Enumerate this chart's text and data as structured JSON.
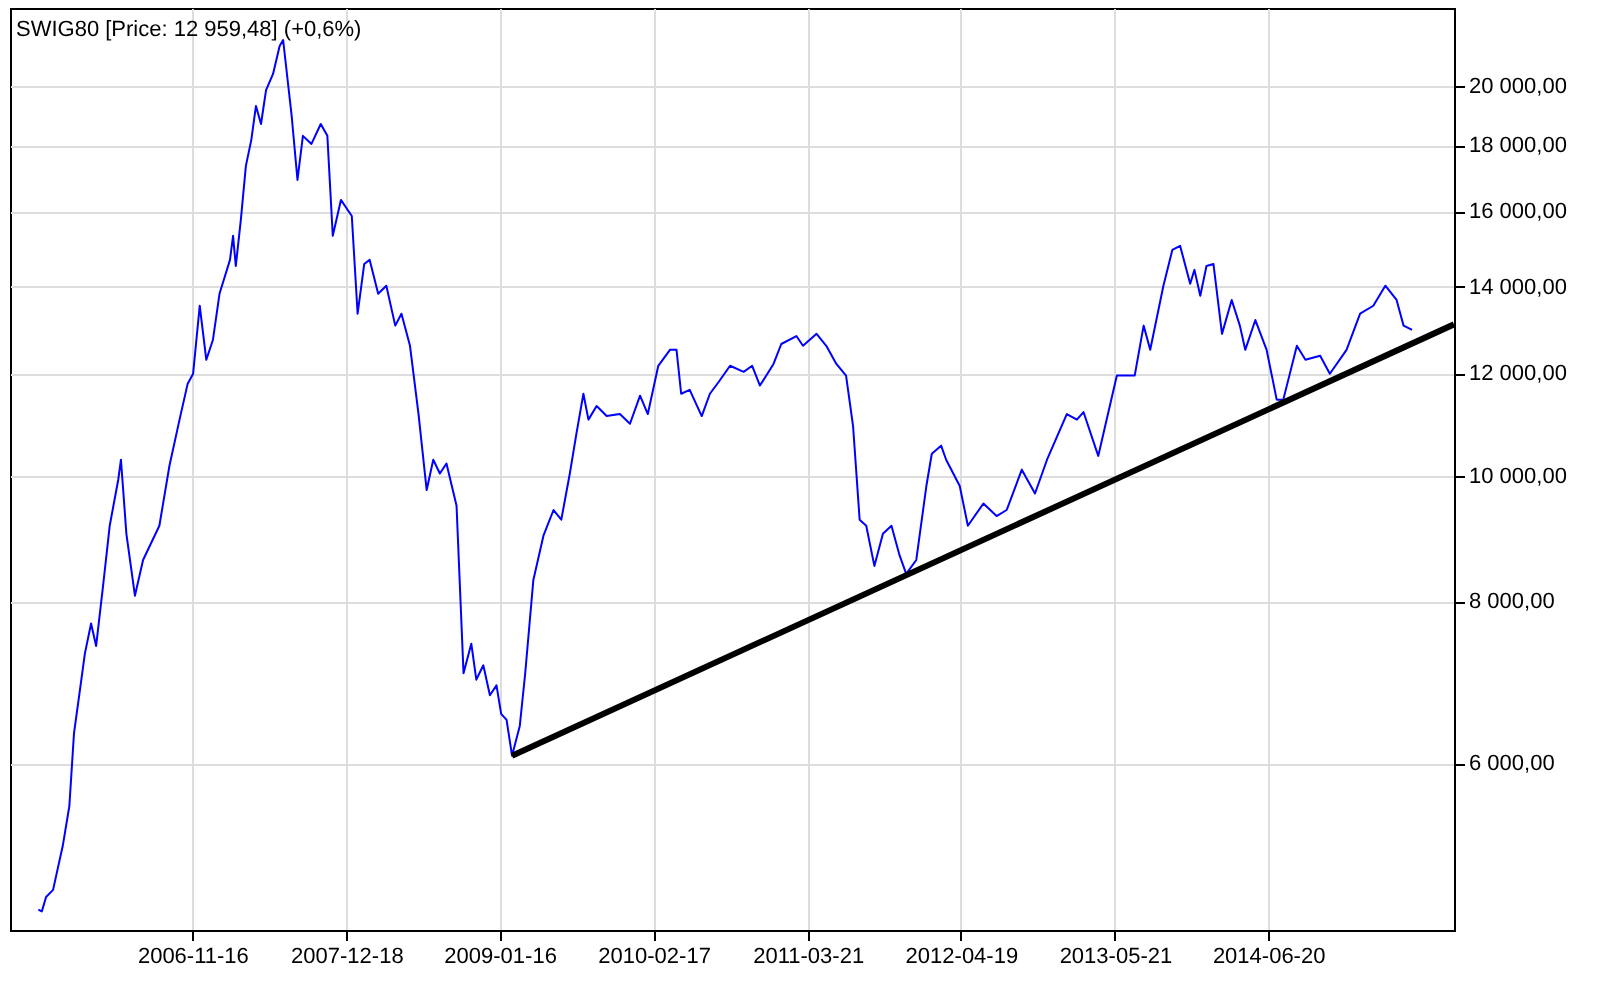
{
  "chart_data": {
    "type": "line",
    "title": "SWIG80 [Price: 12 959,48] (+0,6%)",
    "log": "y",
    "grid": true,
    "xlim": [
      "2005-08-03",
      "2015-10-12"
    ],
    "xticks": [
      "2006-11-16",
      "2007-12-18",
      "2009-01-16",
      "2010-02-17",
      "2011-03-21",
      "2012-04-19",
      "2013-05-21",
      "2014-06-20"
    ],
    "ylim": [
      4460,
      22970
    ],
    "yticks": [
      {
        "value": 6000,
        "label": "6 000,00"
      },
      {
        "value": 8000,
        "label": "8 000,00"
      },
      {
        "value": 10000,
        "label": "10 000,00"
      },
      {
        "value": 12000,
        "label": "12 000,00"
      },
      {
        "value": 14000,
        "label": "14 000,00"
      },
      {
        "value": 16000,
        "label": "16 000,00"
      },
      {
        "value": 18000,
        "label": "18 000,00"
      },
      {
        "value": 20000,
        "label": "20 000,00"
      }
    ],
    "x": [
      "2005-10-15",
      "2005-10-24",
      "2005-11-04",
      "2005-11-22",
      "2005-12-17",
      "2006-01-03",
      "2006-01-15",
      "2006-01-29",
      "2006-02-12",
      "2006-02-28",
      "2006-03-13",
      "2006-03-31",
      "2006-04-17",
      "2006-05-09",
      "2006-05-16",
      "2006-05-30",
      "2006-06-21",
      "2006-07-12",
      "2006-08-23",
      "2006-09-18",
      "2006-10-14",
      "2006-11-04",
      "2006-11-18",
      "2006-12-05",
      "2006-12-22",
      "2007-01-08",
      "2007-01-25",
      "2007-02-21",
      "2007-03-01",
      "2007-03-08",
      "2007-03-21",
      "2007-04-03",
      "2007-04-17",
      "2007-04-29",
      "2007-05-12",
      "2007-05-25",
      "2007-06-12",
      "2007-06-29",
      "2007-07-08",
      "2007-07-30",
      "2007-08-14",
      "2007-08-28",
      "2007-09-19",
      "2007-10-13",
      "2007-10-30",
      "2007-11-13",
      "2007-12-04",
      "2008-01-01",
      "2008-01-16",
      "2008-02-02",
      "2008-02-16",
      "2008-03-09",
      "2008-03-30",
      "2008-04-22",
      "2008-05-08",
      "2008-05-30",
      "2008-06-21",
      "2008-07-12",
      "2008-07-29",
      "2008-08-15",
      "2008-09-01",
      "2008-09-27",
      "2008-10-15",
      "2008-11-04",
      "2008-11-17",
      "2008-12-05",
      "2008-12-22",
      "2009-01-08",
      "2009-01-20",
      "2009-02-03",
      "2009-02-17",
      "2009-03-09",
      "2009-03-23",
      "2009-04-13",
      "2009-05-09",
      "2009-06-04",
      "2009-06-24",
      "2009-07-16",
      "2009-08-02",
      "2009-08-20",
      "2009-09-02",
      "2009-09-23",
      "2009-10-19",
      "2009-11-22",
      "2009-12-18",
      "2010-01-13",
      "2010-02-02",
      "2010-03-01",
      "2010-03-31",
      "2010-04-17",
      "2010-04-29",
      "2010-05-21",
      "2010-06-21",
      "2010-07-12",
      "2010-08-04",
      "2010-09-02",
      "2010-10-07",
      "2010-10-29",
      "2010-11-18",
      "2010-12-23",
      "2011-01-12",
      "2011-02-20",
      "2011-03-09",
      "2011-04-13",
      "2011-05-08",
      "2011-06-03",
      "2011-06-28",
      "2011-07-16",
      "2011-08-02",
      "2011-08-19",
      "2011-09-09",
      "2011-10-01",
      "2011-10-23",
      "2011-11-13",
      "2011-11-30",
      "2011-12-26",
      "2012-01-21",
      "2012-02-04",
      "2012-02-28",
      "2012-03-12",
      "2012-04-16",
      "2012-05-07",
      "2012-06-16",
      "2012-07-20",
      "2012-08-15",
      "2012-09-23",
      "2012-10-27",
      "2012-11-27",
      "2013-01-17",
      "2013-02-12",
      "2013-03-01",
      "2013-04-08",
      "2013-05-26",
      "2013-07-11",
      "2013-08-03",
      "2013-08-20",
      "2013-09-23",
      "2013-10-16",
      "2013-11-05",
      "2013-12-01",
      "2013-12-12",
      "2013-12-27",
      "2014-01-12",
      "2014-01-30",
      "2014-02-21",
      "2014-03-18",
      "2014-04-08",
      "2014-04-22",
      "2014-05-18",
      "2014-06-16",
      "2014-07-12",
      "2014-07-29",
      "2014-09-02",
      "2014-09-24",
      "2014-11-01",
      "2014-11-26",
      "2015-01-08",
      "2015-02-12",
      "2015-03-18",
      "2015-04-18",
      "2015-05-17",
      "2015-06-04",
      "2015-06-26"
    ],
    "series": [
      {
        "color": "#0000ff",
        "values": [
          4625,
          4610,
          4730,
          4790,
          5180,
          5560,
          6330,
          6790,
          7290,
          7690,
          7390,
          8230,
          9150,
          9930,
          10290,
          9020,
          8080,
          8610,
          9150,
          10180,
          11050,
          11780,
          11990,
          13530,
          12290,
          12730,
          13820,
          14680,
          15320,
          14520,
          15760,
          17350,
          18170,
          19300,
          18690,
          19850,
          20430,
          21470,
          21700,
          18960,
          16920,
          18300,
          18040,
          18690,
          18300,
          15320,
          16330,
          15870,
          13340,
          14570,
          14680,
          13820,
          14020,
          13060,
          13340,
          12600,
          11160,
          9750,
          10290,
          10040,
          10220,
          9480,
          7040,
          7420,
          6960,
          7140,
          6770,
          6890,
          6550,
          6480,
          6080,
          6410,
          7040,
          8310,
          8990,
          9410,
          9250,
          10040,
          10780,
          11570,
          11050,
          11320,
          11120,
          11160,
          10970,
          11530,
          11160,
          12160,
          12510,
          12510,
          11570,
          11650,
          11120,
          11570,
          11820,
          12160,
          12030,
          12160,
          11740,
          12200,
          12640,
          12820,
          12600,
          12870,
          12600,
          12200,
          11950,
          10930,
          9250,
          9150,
          8520,
          9020,
          9150,
          8680,
          8400,
          8610,
          9820,
          10400,
          10550,
          10290,
          9820,
          9150,
          9520,
          9310,
          9410,
          10110,
          9690,
          10290,
          11160,
          11050,
          11200,
          10360,
          11950,
          11950,
          13060,
          12510,
          14020,
          14940,
          15050,
          14070,
          14420,
          13770,
          14520,
          14570,
          12870,
          13670,
          13060,
          12510,
          13190,
          12510,
          11450,
          11450,
          12600,
          12290,
          12380,
          11990,
          12510,
          13340,
          13530,
          14020,
          13670,
          13060,
          12960
        ]
      },
      {
        "type": "line",
        "color": "#000000",
        "x": [
          "2009-02-17",
          "2015-10-12"
        ],
        "values": [
          6080,
          13090
        ]
      }
    ]
  }
}
